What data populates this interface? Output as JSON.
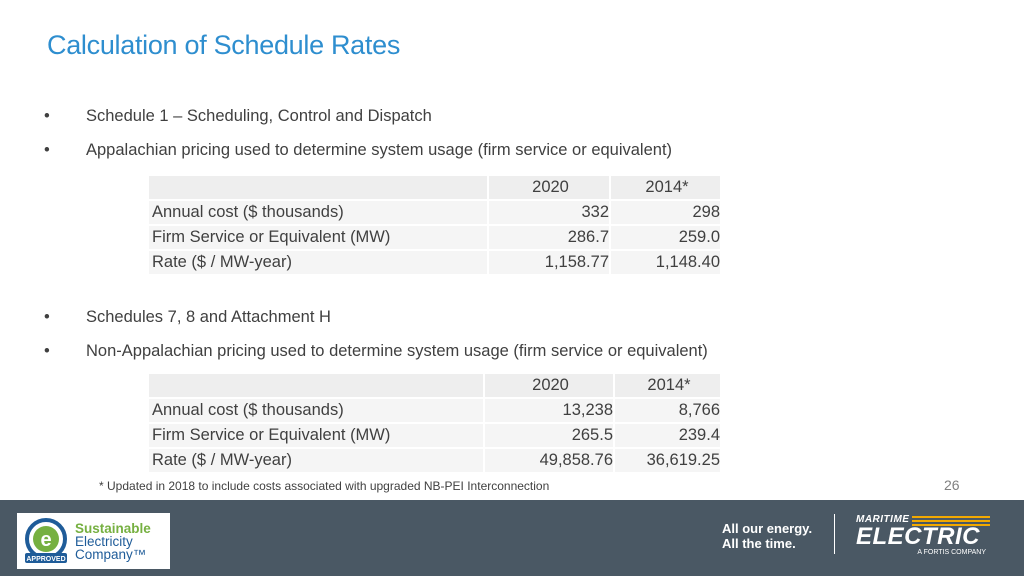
{
  "title": "Calculation of Schedule Rates",
  "bullets": {
    "b1": "Schedule 1 – Scheduling, Control and Dispatch",
    "b2": "Appalachian pricing used to determine system usage (firm service or equivalent)",
    "b3": "Schedules 7, 8 and Attachment H",
    "b4": "Non-Appalachian pricing used to determine system usage (firm service or equivalent)",
    "dot": "•"
  },
  "table1": {
    "headers": [
      "",
      "2020",
      "2014*"
    ],
    "rows": [
      [
        "Annual cost ($ thousands)",
        "332",
        "298"
      ],
      [
        "Firm Service or Equivalent (MW)",
        "286.7",
        "259.0"
      ],
      [
        "Rate ($ / MW-year)",
        "1,158.77",
        "1,148.40"
      ]
    ]
  },
  "table2": {
    "headers": [
      "",
      "2020",
      "2014*"
    ],
    "rows": [
      [
        "Annual cost ($ thousands)",
        "13,238",
        "8,766"
      ],
      [
        "Firm Service or Equivalent (MW)",
        "265.5",
        "239.4"
      ],
      [
        "Rate ($ / MW-year)",
        "49,858.76",
        "36,619.25"
      ]
    ]
  },
  "footnote": "* Updated in 2018 to include costs associated with upgraded NB-PEI Interconnection",
  "page_number": "26",
  "footer": {
    "sec_logo": {
      "line1": "Sustainable",
      "line2": "Electricity",
      "line3": "Company™",
      "badge": "APPROVED"
    },
    "tagline_1": "All our energy.",
    "tagline_2": "All the time.",
    "me_logo": {
      "top": "MARITIME",
      "main": "ELECTRIC",
      "sub": "A FORTIS COMPANY"
    }
  },
  "colors": {
    "title": "#2e8ecf",
    "footer_bg": "#4a5864",
    "accent_green": "#76b041",
    "accent_blue": "#1f5c99",
    "accent_gold": "#f2a900"
  }
}
